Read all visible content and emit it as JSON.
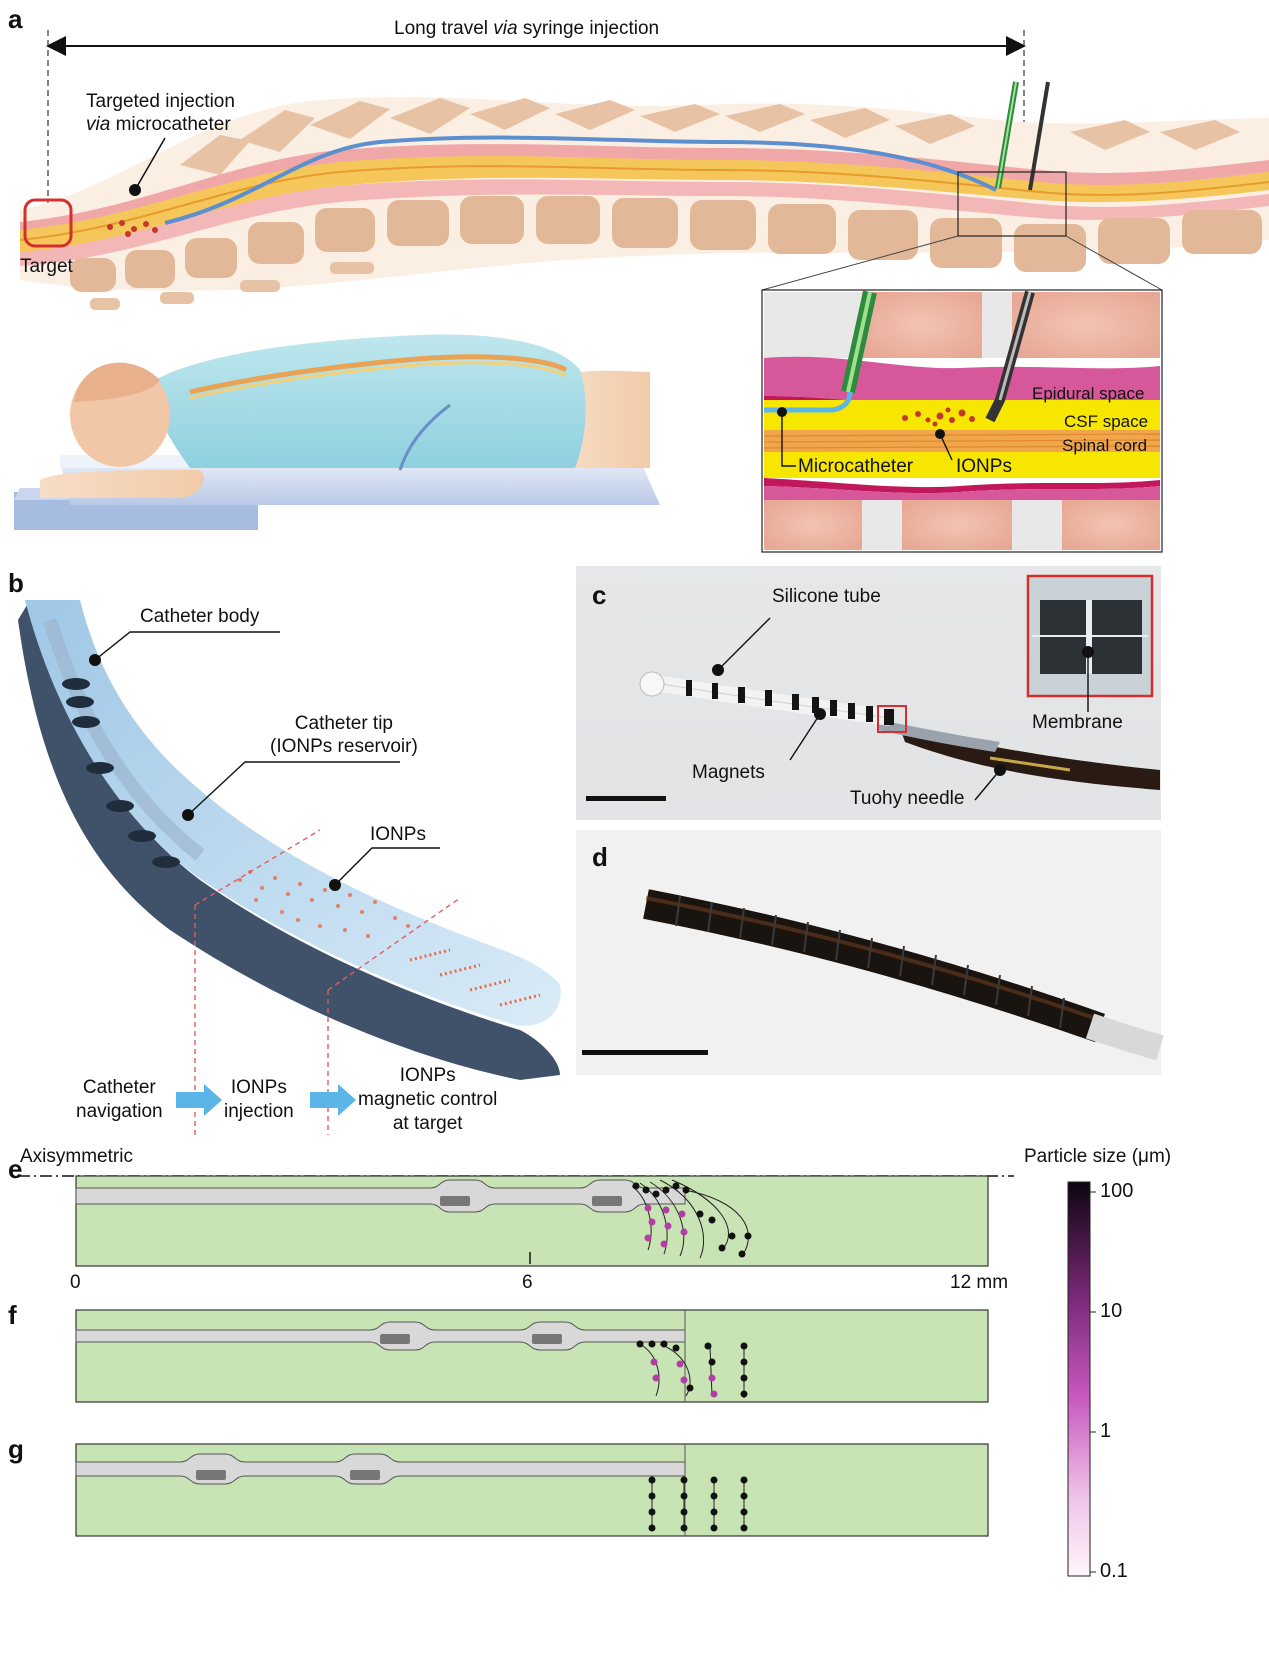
{
  "panel_a": {
    "label": "a",
    "travel_text": "Long travel ",
    "travel_italic": "via",
    "travel_text2": " syringe injection",
    "targeted_line1": "Targeted injection",
    "targeted_italic": "via",
    "targeted_line2": " microcatheter",
    "target": "Target",
    "inset": {
      "epidural": "Epidural space",
      "csf": "CSF space",
      "cord": "Spinal cord",
      "microcatheter": "Microcatheter",
      "ionps": "IONPs"
    }
  },
  "panel_b": {
    "label": "b",
    "catheter_body": "Catheter body",
    "tip_line1": "Catheter tip",
    "tip_line2": "(IONPs reservoir)",
    "ionps": "IONPs",
    "step1_line1": "Catheter",
    "step1_line2": "navigation",
    "step2_line1": "IONPs",
    "step2_line2": "injection",
    "step3_line1": "IONPs",
    "step3_line2": "magnetic control",
    "step3_line3": "at target"
  },
  "panel_c": {
    "label": "c",
    "silicone_tube": "Silicone tube",
    "magnets": "Magnets",
    "tuohy": "Tuohy needle",
    "membrane": "Membrane"
  },
  "panel_d": {
    "label": "d"
  },
  "panel_e": {
    "label": "e",
    "axisymmetric": "Axisymmetric",
    "tick0": "0",
    "tick6": "6",
    "tick12": "12 mm"
  },
  "panel_f": {
    "label": "f"
  },
  "panel_g": {
    "label": "g"
  },
  "colorbar": {
    "title": "Particle size (μm)",
    "ticks": [
      "100",
      "10",
      "1",
      "0.1"
    ]
  },
  "colors": {
    "bone": "#e8c2a5",
    "cord_yellow": "#f4d03f",
    "csf_yellow": "#f7e600",
    "epidural_pink": "#d7589a",
    "fluid_green": "#c9e4b4",
    "catheter_blue": "#cfe3f2",
    "ionp_red": "#c0392b",
    "arrow_blue": "#5bb5e6"
  }
}
